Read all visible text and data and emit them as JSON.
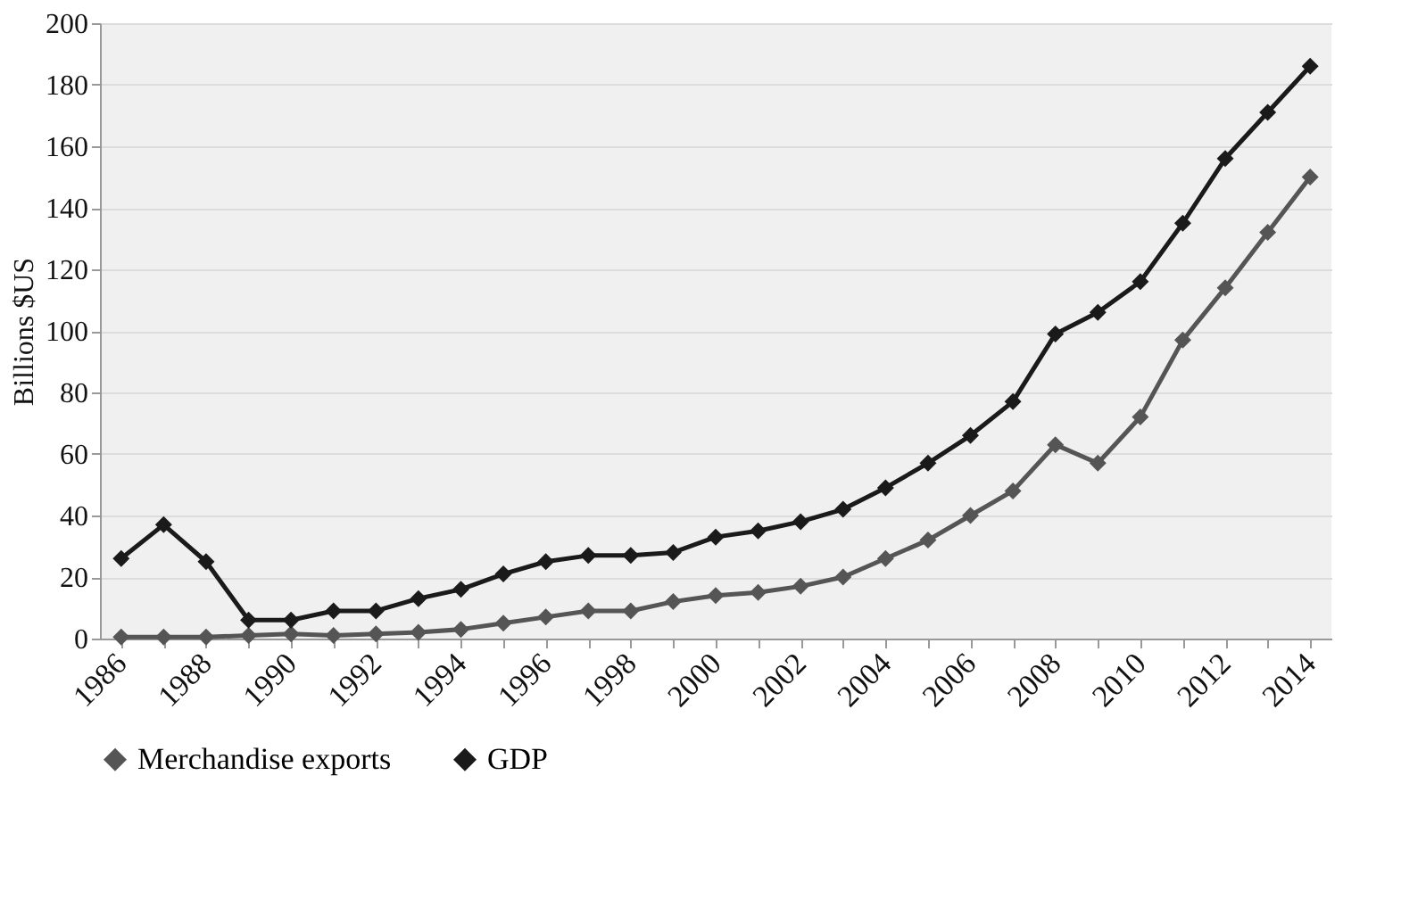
{
  "chart_data": {
    "type": "line",
    "ylabel": "Billions $US",
    "categories": [
      "1986",
      null,
      "1988",
      null,
      "1990",
      null,
      "1992",
      null,
      "1994",
      null,
      "1996",
      null,
      "1998",
      null,
      "2000",
      null,
      "2002",
      null,
      "2004",
      null,
      "2006",
      null,
      "2008",
      null,
      "2010",
      null,
      "2012",
      null,
      "2014"
    ],
    "series": [
      {
        "name": "Merchandise exports",
        "color": "#555555",
        "values": [
          0.5,
          0.5,
          0.5,
          1,
          1.5,
          1,
          1.5,
          2,
          3,
          5,
          7,
          9,
          9,
          12,
          14,
          15,
          17,
          20,
          26,
          32,
          40,
          48,
          63,
          57,
          72,
          97,
          114,
          132,
          150
        ]
      },
      {
        "name": "GDP",
        "color": "#1a1a1a",
        "values": [
          26,
          37,
          25,
          6,
          6,
          9,
          9,
          13,
          16,
          21,
          25,
          27,
          27,
          28,
          33,
          35,
          38,
          42,
          49,
          57,
          66,
          77,
          99,
          106,
          116,
          135,
          156,
          171,
          186
        ]
      }
    ],
    "ylim": [
      0,
      200
    ],
    "yticks": [
      0,
      20,
      40,
      60,
      80,
      100,
      120,
      140,
      160,
      180,
      200
    ],
    "grid": "y",
    "legend": "bottom",
    "marker": "diamond",
    "line_style": "solid"
  }
}
